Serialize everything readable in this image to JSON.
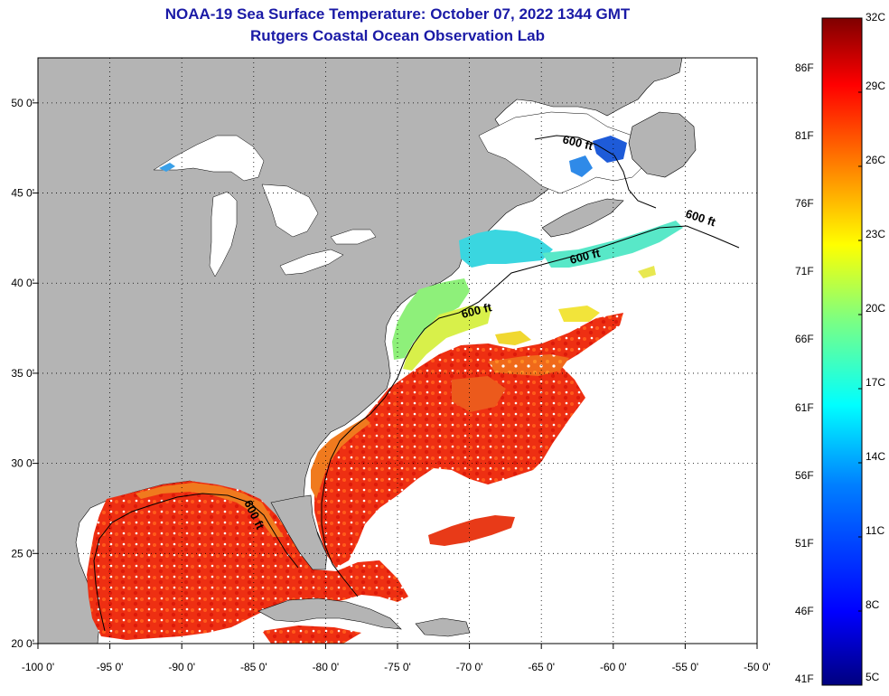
{
  "title": {
    "line1": "NOAA-19 Sea Surface Temperature:  October 07, 2022 1344 GMT",
    "line2": "Rutgers Coastal Ocean Observation Lab"
  },
  "map": {
    "lon_range": [
      -100,
      -50
    ],
    "lat_range": [
      20,
      52.5
    ],
    "x_ticks": [
      {
        "value": -100,
        "label": "-100 0'"
      },
      {
        "value": -95,
        "label": "-95 0'"
      },
      {
        "value": -90,
        "label": "-90 0'"
      },
      {
        "value": -85,
        "label": "-85 0'"
      },
      {
        "value": -80,
        "label": "-80 0'"
      },
      {
        "value": -75,
        "label": "-75 0'"
      },
      {
        "value": -70,
        "label": "-70 0'"
      },
      {
        "value": -65,
        "label": "-65 0'"
      },
      {
        "value": -60,
        "label": "-60 0'"
      },
      {
        "value": -55,
        "label": "-55 0'"
      },
      {
        "value": -50,
        "label": "-50 0'"
      }
    ],
    "y_ticks": [
      {
        "value": 20,
        "label": "20 0'"
      },
      {
        "value": 25,
        "label": "25 0'"
      },
      {
        "value": 30,
        "label": "30 0'"
      },
      {
        "value": 35,
        "label": "35 0'"
      },
      {
        "value": 40,
        "label": "40 0'"
      },
      {
        "value": 45,
        "label": "45 0'"
      },
      {
        "value": 50,
        "label": "50 0'"
      }
    ],
    "contour_labels": [
      "600 ft",
      "600 ft",
      "600 ft",
      "600 ft",
      "600 ft"
    ],
    "colors": {
      "land": "#b4b4b4",
      "no_data": "#ffffff",
      "grid": "#000000"
    }
  },
  "colorbar": {
    "range_c": [
      5,
      32
    ],
    "celsius_labels": [
      "32C",
      "29C",
      "26C",
      "23C",
      "20C",
      "17C",
      "14C",
      "11C",
      "8C",
      "5C"
    ],
    "fahrenheit_labels": [
      "86F",
      "81F",
      "76F",
      "71F",
      "66F",
      "61F",
      "56F",
      "51F",
      "46F",
      "41F"
    ],
    "stops": [
      "#00007f",
      "#0000ff",
      "#007fff",
      "#00ffff",
      "#7fff7f",
      "#ffff00",
      "#ff7f00",
      "#ff0000",
      "#7f0000"
    ]
  }
}
